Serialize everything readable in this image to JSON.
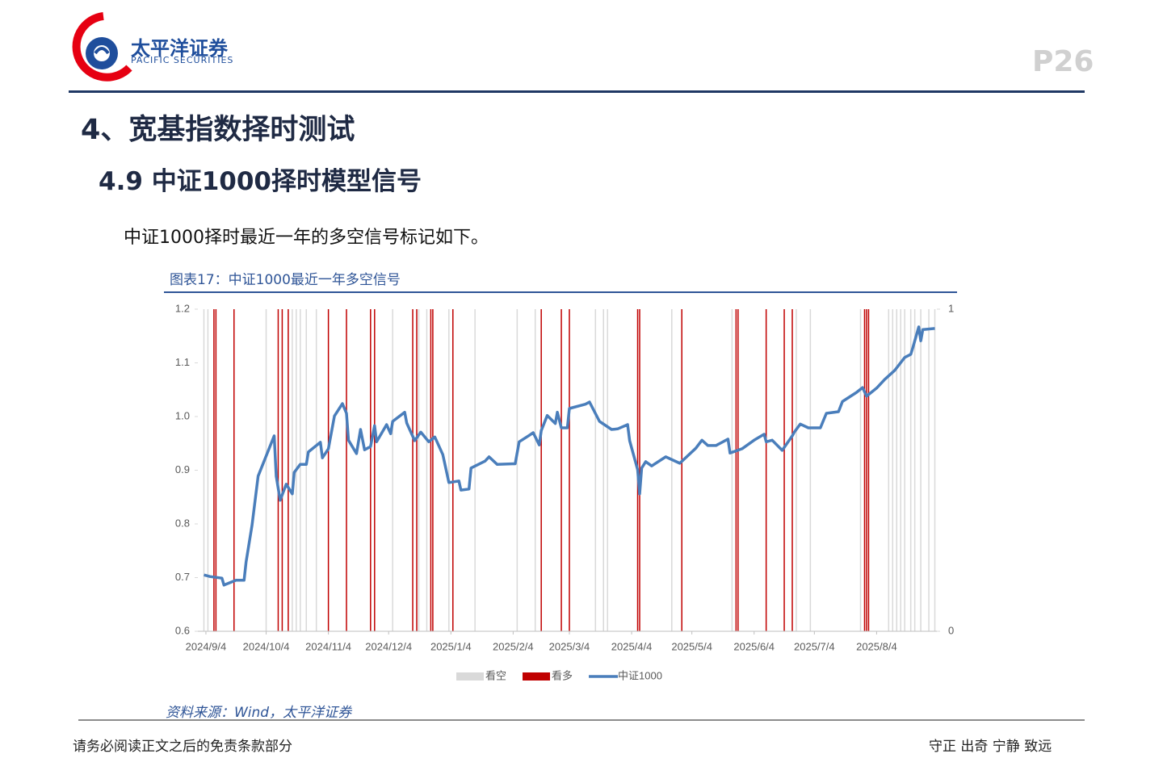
{
  "header": {
    "logo_cn": "太平洋证券",
    "logo_en": "PACIFIC SECURITIES",
    "page": "P26"
  },
  "section_title": "4、宽基指数择时测试",
  "subsection_title": "4.9 中证1000择时模型信号",
  "body_text": "中证1000择时最近一年的多空信号标记如下。",
  "figure": {
    "caption": "图表17：中证1000最近一年多空信号",
    "source": "资料来源：Wind，太平洋证券"
  },
  "chart_data": {
    "type": "line",
    "xlim": [
      "2024/8/31",
      "2025/9/3"
    ],
    "xticks": [
      "2024/9/4",
      "2024/10/4",
      "2024/11/4",
      "2024/12/4",
      "2025/1/4",
      "2025/2/4",
      "2025/3/4",
      "2025/4/4",
      "2025/5/4",
      "2025/6/4",
      "2025/7/4",
      "2025/8/4"
    ],
    "ylim": [
      0.6,
      1.2
    ],
    "yticks": [
      0.6,
      0.7,
      0.8,
      0.9,
      {
        "value": 1,
        "label": "1.0"
      },
      1.1,
      1.2
    ],
    "y2lim": [
      0,
      1
    ],
    "y2ticks": [
      0,
      1
    ],
    "legend": "bottom",
    "series": [
      {
        "name": "看空",
        "type": "bar",
        "axis": "y2",
        "color": "#d9d9d9",
        "x": [
          "2024/9/3",
          "2024/9/5",
          "2024/10/4",
          "2024/10/17",
          "2024/10/19",
          "2024/10/21",
          "2024/10/24",
          "2024/10/29",
          "2024/12/6",
          "2024/12/19",
          "2024/12/23",
          "2025/1/3",
          "2025/1/16",
          "2025/2/6",
          "2025/2/15",
          "2025/3/17",
          "2025/3/21",
          "2025/3/23",
          "2025/4/24",
          "2025/5/24",
          "2025/6/25",
          "2025/7/2",
          "2025/7/27",
          "2025/8/10",
          "2025/8/12",
          "2025/8/14",
          "2025/8/16",
          "2025/8/18",
          "2025/8/21",
          "2025/8/23",
          "2025/8/26",
          "2025/8/30",
          "2025/9/2"
        ],
        "values": [
          1,
          1,
          1,
          1,
          1,
          1,
          1,
          1,
          1,
          1,
          1,
          1,
          1,
          1,
          1,
          1,
          1,
          1,
          1,
          1,
          1,
          1,
          1,
          1,
          1,
          1,
          1,
          1,
          1,
          1,
          1,
          1,
          1
        ]
      },
      {
        "name": "看多",
        "type": "bar",
        "axis": "y2",
        "color": "#c00000",
        "x": [
          "2024/9/8",
          "2024/9/9",
          "2024/9/18",
          "2024/10/10",
          "2024/10/12",
          "2024/10/15",
          "2024/11/4",
          "2024/11/13",
          "2024/11/25",
          "2024/11/27",
          "2024/12/16",
          "2024/12/18",
          "2024/12/25",
          "2024/12/26",
          "2025/1/5",
          "2025/2/18",
          "2025/2/28",
          "2025/3/4",
          "2025/4/7",
          "2025/4/8",
          "2025/4/29",
          "2025/5/26",
          "2025/5/27",
          "2025/6/10",
          "2025/6/19",
          "2025/6/23",
          "2025/7/29",
          "2025/7/30",
          "2025/7/31"
        ],
        "values": [
          1,
          1,
          1,
          1,
          1,
          1,
          1,
          1,
          1,
          1,
          1,
          1,
          1,
          1,
          1,
          1,
          1,
          1,
          1,
          1,
          1,
          1,
          1,
          1,
          1,
          1,
          1,
          1,
          1
        ]
      },
      {
        "name": "中证1000",
        "type": "line",
        "color": "#4a7ebb",
        "x": [
          "2024/9/3",
          "2024/9/6",
          "2024/9/12",
          "2024/9/13",
          "2024/9/19",
          "2024/9/23",
          "2024/9/24",
          "2024/9/27",
          "2024/9/30",
          "2024/10/8",
          "2024/10/9",
          "2024/10/11",
          "2024/10/14",
          "2024/10/17",
          "2024/10/18",
          "2024/10/21",
          "2024/10/24",
          "2024/10/25",
          "2024/10/31",
          "2024/11/1",
          "2024/11/4",
          "2024/11/7",
          "2024/11/11",
          "2024/11/13",
          "2024/11/14",
          "2024/11/18",
          "2024/11/20",
          "2024/11/22",
          "2024/11/25",
          "2024/11/27",
          "2024/11/28",
          "2024/12/3",
          "2024/12/5",
          "2024/12/6",
          "2024/12/12",
          "2024/12/13",
          "2024/12/17",
          "2024/12/20",
          "2024/12/24",
          "2024/12/27",
          "2024/12/31",
          "2025/1/3",
          "2025/1/8",
          "2025/1/9",
          "2025/1/13",
          "2025/1/14",
          "2025/1/21",
          "2025/1/23",
          "2025/1/27",
          "2025/2/5",
          "2025/2/7",
          "2025/2/12",
          "2025/2/14",
          "2025/2/17",
          "2025/2/18",
          "2025/2/21",
          "2025/2/25",
          "2025/2/26",
          "2025/2/28",
          "2025/3/3",
          "2025/3/4",
          "2025/3/12",
          "2025/3/14",
          "2025/3/19",
          "2025/3/25",
          "2025/3/28",
          "2025/4/2",
          "2025/4/3",
          "2025/4/7",
          "2025/4/8",
          "2025/4/9",
          "2025/4/11",
          "2025/4/14",
          "2025/4/21",
          "2025/4/25",
          "2025/4/28",
          "2025/5/6",
          "2025/5/9",
          "2025/5/12",
          "2025/5/16",
          "2025/5/22",
          "2025/5/23",
          "2025/5/29",
          "2025/6/4",
          "2025/6/9",
          "2025/6/10",
          "2025/6/13",
          "2025/6/18",
          "2025/6/23",
          "2025/6/24",
          "2025/6/27",
          "2025/7/1",
          "2025/7/7",
          "2025/7/10",
          "2025/7/16",
          "2025/7/18",
          "2025/7/25",
          "2025/7/28",
          "2025/7/30",
          "2025/8/4",
          "2025/8/8",
          "2025/8/13",
          "2025/8/18",
          "2025/8/21",
          "2025/8/22",
          "2025/8/25",
          "2025/8/26",
          "2025/8/27",
          "2025/9/2"
        ],
        "values": [
          0.705,
          0.702,
          0.699,
          0.686,
          0.695,
          0.695,
          0.729,
          0.798,
          0.889,
          0.964,
          0.889,
          0.844,
          0.874,
          0.856,
          0.896,
          0.911,
          0.911,
          0.934,
          0.952,
          0.923,
          0.94,
          1.001,
          1.024,
          1.006,
          0.956,
          0.931,
          0.976,
          0.938,
          0.944,
          0.983,
          0.953,
          0.985,
          0.968,
          0.991,
          1.008,
          0.988,
          0.955,
          0.971,
          0.953,
          0.962,
          0.929,
          0.877,
          0.88,
          0.863,
          0.865,
          0.904,
          0.917,
          0.925,
          0.911,
          0.912,
          0.953,
          0.965,
          0.97,
          0.947,
          0.974,
          1.002,
          0.987,
          1.008,
          0.979,
          0.979,
          1.015,
          1.023,
          1.027,
          0.991,
          0.976,
          0.977,
          0.985,
          0.955,
          0.901,
          0.856,
          0.904,
          0.916,
          0.908,
          0.925,
          0.918,
          0.913,
          0.941,
          0.956,
          0.946,
          0.946,
          0.958,
          0.932,
          0.94,
          0.956,
          0.967,
          0.953,
          0.956,
          0.937,
          0.964,
          0.971,
          0.986,
          0.979,
          0.979,
          1.006,
          1.009,
          1.028,
          1.045,
          1.054,
          1.038,
          1.053,
          1.069,
          1.086,
          1.11,
          1.116,
          1.128,
          1.167,
          1.141,
          1.162,
          1.164
        ]
      }
    ]
  },
  "footer": {
    "left": "请务必阅读正文之后的免责条款部分",
    "right": "守正 出奇 宁静 致远"
  }
}
